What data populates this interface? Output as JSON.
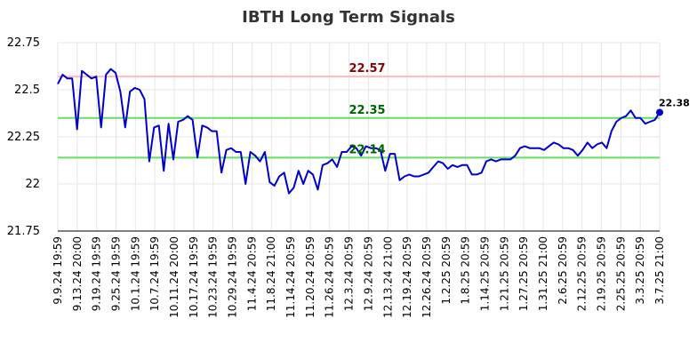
{
  "chart_data": {
    "type": "line",
    "title": "IBTH Long Term Signals",
    "xlabel": "",
    "ylabel": "",
    "ylim": [
      21.75,
      22.75
    ],
    "yticks": [
      21.75,
      22,
      22.25,
      22.5,
      22.75
    ],
    "ytick_labels": [
      "21.75",
      "22",
      "22.25",
      "22.5",
      "22.75"
    ],
    "xtick_labels": [
      "9.9.24 19:59",
      "9.13.24 20:00",
      "9.19.24 19:59",
      "9.25.24 19:59",
      "10.1.24 19:59",
      "10.7.24 19:59",
      "10.11.24 20:00",
      "10.17.24 19:59",
      "10.23.24 19:59",
      "10.29.24 19:59",
      "11.4.24 20:59",
      "11.8.24 21:00",
      "11.14.24 20:59",
      "11.20.24 20:59",
      "11.26.24 20:59",
      "12.3.24 20:59",
      "12.9.24 20:59",
      "12.13.24 21:00",
      "12.19.24 20:59",
      "12.26.24 20:59",
      "1.2.25 20:59",
      "1.8.25 20:59",
      "1.14.25 20:59",
      "1.21.25 20:59",
      "1.27.25 20:59",
      "1.31.25 21:00",
      "2.6.25 20:59",
      "2.12.25 20:59",
      "2.19.25 20:59",
      "2.25.25 20:59",
      "3.3.25 20:59",
      "3.7.25 21:00"
    ],
    "grid": true,
    "series": [
      {
        "name": "",
        "color": "#0000cc",
        "values": [
          22.53,
          22.58,
          22.56,
          22.56,
          22.29,
          22.6,
          22.58,
          22.56,
          22.57,
          22.3,
          22.58,
          22.61,
          22.59,
          22.49,
          22.3,
          22.49,
          22.51,
          22.5,
          22.45,
          22.12,
          22.3,
          22.31,
          22.07,
          22.32,
          22.13,
          22.33,
          22.34,
          22.36,
          22.34,
          22.14,
          22.31,
          22.3,
          22.28,
          22.28,
          22.06,
          22.18,
          22.19,
          22.17,
          22.17,
          22.0,
          22.17,
          22.15,
          22.12,
          22.17,
          22.01,
          21.99,
          22.04,
          22.06,
          21.95,
          21.98,
          22.07,
          22.0,
          22.07,
          22.05,
          21.97,
          22.1,
          22.11,
          22.13,
          22.09,
          22.17,
          22.17,
          22.2,
          22.19,
          22.15,
          22.2,
          22.19,
          22.19,
          22.18,
          22.07,
          22.16,
          22.16,
          22.02,
          22.04,
          22.05,
          22.04,
          22.04,
          22.05,
          22.06,
          22.09,
          22.12,
          22.11,
          22.08,
          22.1,
          22.09,
          22.1,
          22.1,
          22.05,
          22.05,
          22.06,
          22.12,
          22.13,
          22.12,
          22.13,
          22.13,
          22.13,
          22.15,
          22.19,
          22.2,
          22.19,
          22.19,
          22.19,
          22.18,
          22.2,
          22.22,
          22.21,
          22.19,
          22.19,
          22.18,
          22.15,
          22.18,
          22.22,
          22.19,
          22.21,
          22.22,
          22.19,
          22.28,
          22.33,
          22.35,
          22.36,
          22.39,
          22.35,
          22.35,
          22.32,
          22.33,
          22.34,
          22.38
        ]
      }
    ],
    "signal_lines": [
      {
        "value": 22.57,
        "label": "22.57",
        "line_color": "#ffbbbb",
        "label_color": "#8b0000"
      },
      {
        "value": 22.35,
        "label": "22.35",
        "line_color": "#66dd66",
        "label_color": "#006400"
      },
      {
        "value": 22.14,
        "label": "22.14",
        "line_color": "#66dd66",
        "label_color": "#006400"
      }
    ],
    "last_value_label": "22.38",
    "colors": {
      "line": "#0000cc",
      "grid": "#e6e6e6",
      "axis": "#000000",
      "title": "#333333"
    }
  }
}
